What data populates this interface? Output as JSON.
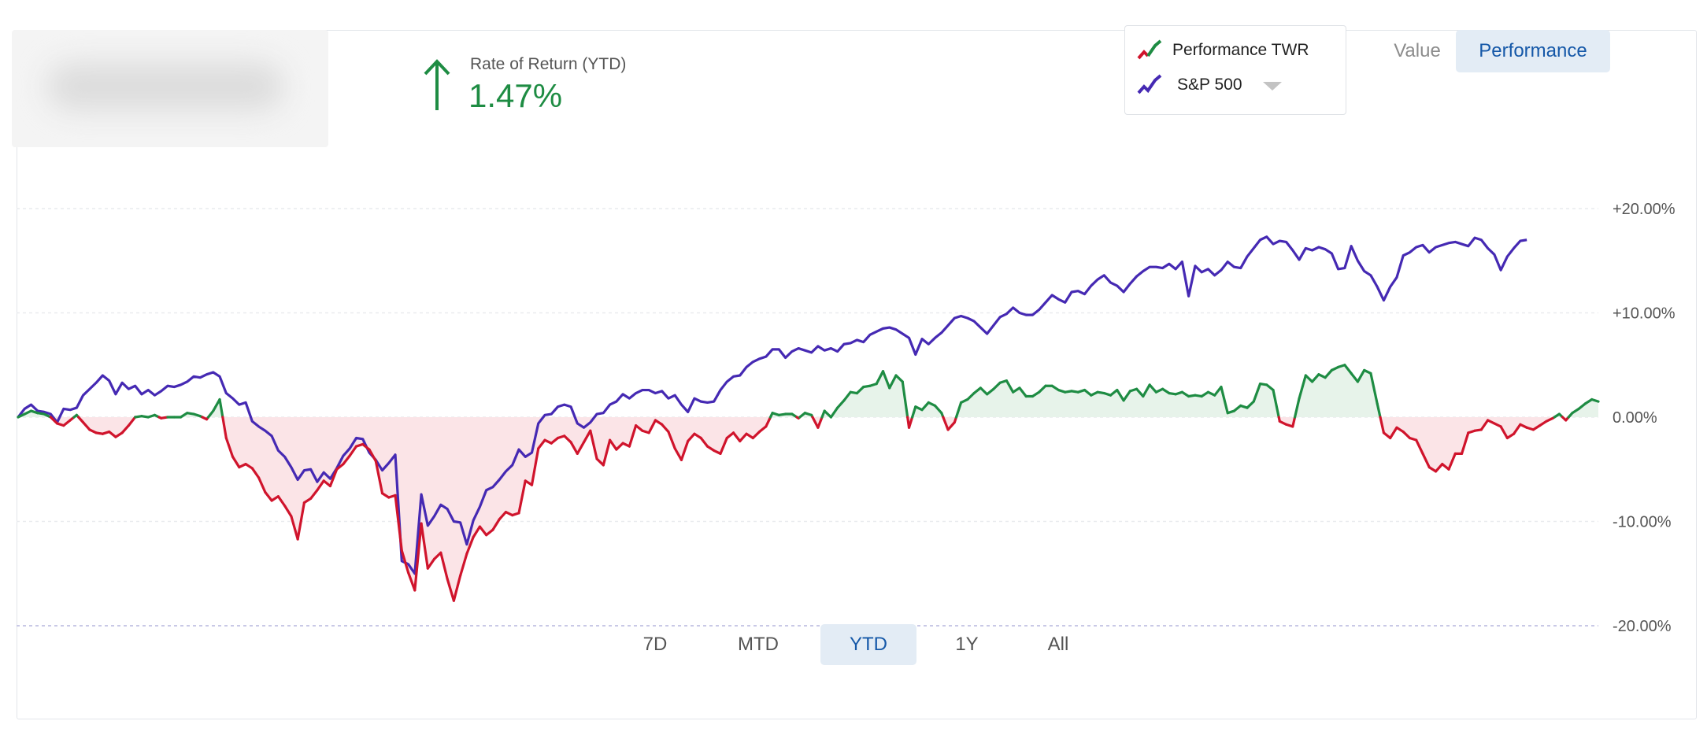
{
  "summary": {
    "rate_label": "Rate of Return (YTD)",
    "rate_value": "1.47%",
    "up_color": "#1e8c43",
    "arrow_icon": "arrow-up-icon"
  },
  "legend": {
    "primary_label": "Performance TWR",
    "benchmark_label": "S&P 500",
    "benchmark_dropdown_icon": "caret-down-icon"
  },
  "view_toggle": {
    "value_label": "Value",
    "performance_label": "Performance",
    "active": "Performance"
  },
  "ranges": {
    "items": [
      "7D",
      "MTD",
      "YTD",
      "1Y",
      "All"
    ],
    "active": "YTD"
  },
  "colors": {
    "twr_positive": "#1e8c43",
    "twr_negative": "#d0142c",
    "sp500": "#4529b3",
    "fill_positive": "#e7f3ea",
    "fill_negative": "#fbe4e7",
    "accent": "#1558a8"
  },
  "chart_data": {
    "type": "line",
    "title": "",
    "xlabel": "",
    "ylabel": "",
    "ylim": [
      -20,
      20
    ],
    "yticks": [
      "+20.00%",
      "+10.00%",
      "0.00%",
      "-10.00%",
      "-20.00%"
    ],
    "ytick_values": [
      20,
      10,
      0,
      -10,
      -20
    ],
    "grid": true,
    "axis_side": "right",
    "series": [
      {
        "name": "Performance TWR",
        "values": [
          0,
          0.3,
          0.6,
          0.4,
          0.3,
          0.0,
          -0.6,
          -0.8,
          -0.3,
          0.2,
          -0.5,
          -1.2,
          -1.5,
          -1.6,
          -1.4,
          -1.9,
          -1.5,
          -0.8,
          0.0,
          0.1,
          0.0,
          0.2,
          -0.1,
          0.0,
          0.0,
          0.0,
          0.4,
          0.3,
          0.1,
          -0.2,
          0.6,
          1.7,
          -2.0,
          -3.8,
          -4.8,
          -4.5,
          -4.9,
          -5.8,
          -7.2,
          -8.0,
          -7.6,
          -8.5,
          -9.5,
          -11.7,
          -8.2,
          -7.8,
          -7.0,
          -6.1,
          -6.6,
          -5.0,
          -4.5,
          -3.7,
          -2.8,
          -2.6,
          -3.1,
          -4.2,
          -7.3,
          -7.7,
          -7.5,
          -12.8,
          -14.9,
          -16.6,
          -10.2,
          -14.5,
          -13.6,
          -13.0,
          -15.5,
          -17.6,
          -15.2,
          -13.1,
          -11.5,
          -10.5,
          -11.3,
          -10.8,
          -9.8,
          -9.1,
          -9.4,
          -9.2,
          -6.1,
          -6.5,
          -3.0,
          -2.2,
          -2.5,
          -2.0,
          -1.8,
          -2.4,
          -3.5,
          -2.4,
          -1.3,
          -4.0,
          -4.6,
          -2.2,
          -3.1,
          -2.5,
          -2.8,
          -0.8,
          -1.3,
          -1.5,
          -0.3,
          -0.7,
          -1.4,
          -3.0,
          -4.1,
          -2.3,
          -1.6,
          -2.0,
          -2.8,
          -3.2,
          -3.5,
          -2.0,
          -1.5,
          -2.3,
          -1.6,
          -2.0,
          -1.4,
          -0.9,
          0.4,
          0.2,
          0.3,
          0.3,
          -0.1,
          0.4,
          0.2,
          -1.0,
          0.6,
          0.0,
          0.9,
          1.6,
          2.4,
          2.3,
          2.9,
          3.0,
          3.2,
          4.4,
          2.8,
          4.0,
          3.4,
          -1.0,
          1.0,
          0.7,
          1.4,
          1.1,
          0.4,
          -1.2,
          -0.5,
          1.4,
          1.7,
          2.3,
          2.8,
          2.2,
          2.7,
          3.3,
          3.5,
          2.4,
          2.8,
          2.0,
          2.0,
          2.4,
          3.0,
          3.0,
          2.6,
          2.4,
          2.5,
          2.4,
          2.6,
          2.1,
          2.4,
          2.3,
          2.1,
          2.6,
          1.6,
          2.5,
          2.7,
          2.0,
          3.1,
          2.4,
          2.7,
          2.3,
          2.2,
          2.4,
          2.0,
          2.1,
          2.0,
          2.4,
          2.1,
          2.9,
          0.4,
          0.6,
          1.1,
          0.9,
          1.5,
          3.2,
          3.1,
          2.6,
          -0.4,
          -0.7,
          -0.9,
          1.8,
          4.0,
          3.4,
          4.1,
          3.8,
          4.5,
          4.8,
          5.0,
          4.2,
          3.4,
          4.5,
          4.2,
          1.3,
          -1.5,
          -2.0,
          -1.0,
          -1.4,
          -2.0,
          -2.2,
          -3.5,
          -4.8,
          -5.2,
          -4.5,
          -5.0,
          -3.5,
          -3.5,
          -1.5,
          -1.3,
          -1.2,
          -0.3,
          -0.6,
          -0.9,
          -2.0,
          -1.6,
          -0.7,
          -1.0,
          -1.2,
          -0.8,
          -0.4,
          -0.1,
          0.3,
          -0.3,
          0.4,
          0.8,
          1.3,
          1.7,
          1.5
        ]
      },
      {
        "name": "S&P 500",
        "values": [
          0,
          0.8,
          1.2,
          0.6,
          0.5,
          0.3,
          -0.5,
          0.8,
          0.7,
          0.9,
          2.1,
          2.7,
          3.3,
          4.0,
          3.5,
          2.2,
          3.3,
          2.7,
          3.0,
          2.2,
          2.6,
          2.1,
          2.5,
          3.0,
          2.9,
          3.1,
          3.4,
          3.9,
          3.8,
          4.1,
          4.3,
          3.9,
          2.3,
          1.8,
          1.2,
          1.4,
          -0.4,
          -0.9,
          -1.3,
          -1.8,
          -3.2,
          -3.8,
          -4.8,
          -6.0,
          -5.1,
          -5.0,
          -6.2,
          -5.3,
          -5.9,
          -4.9,
          -3.7,
          -3.0,
          -2.0,
          -2.1,
          -3.4,
          -4.1,
          -5.1,
          -4.4,
          -3.6,
          -13.8,
          -14.1,
          -15.0,
          -7.4,
          -10.4,
          -9.5,
          -8.4,
          -8.8,
          -10.0,
          -10.1,
          -12.2,
          -9.9,
          -8.6,
          -7.0,
          -6.7,
          -6.0,
          -5.2,
          -4.6,
          -3.1,
          -3.8,
          -3.4,
          -0.6,
          0.2,
          0.3,
          1.0,
          1.2,
          1.0,
          -0.6,
          -1.0,
          -0.5,
          0.3,
          0.4,
          1.2,
          1.5,
          2.2,
          1.8,
          2.3,
          2.6,
          2.6,
          2.3,
          2.5,
          1.8,
          2.1,
          1.2,
          0.5,
          1.8,
          1.5,
          1.4,
          1.5,
          2.6,
          3.4,
          3.9,
          4.0,
          4.8,
          5.3,
          5.6,
          5.8,
          6.5,
          6.5,
          5.7,
          6.3,
          6.6,
          6.4,
          6.2,
          6.8,
          6.4,
          6.6,
          6.3,
          7.0,
          7.1,
          7.4,
          7.2,
          7.9,
          8.2,
          8.5,
          8.6,
          8.4,
          8.0,
          7.6,
          6.0,
          7.5,
          7.0,
          7.6,
          8.1,
          8.8,
          9.5,
          9.7,
          9.5,
          9.2,
          8.6,
          8.0,
          8.8,
          9.6,
          9.9,
          10.5,
          10.0,
          9.8,
          9.8,
          10.3,
          11.0,
          11.7,
          11.3,
          11.0,
          12.0,
          12.1,
          11.8,
          12.6,
          13.2,
          13.6,
          12.9,
          12.6,
          12.0,
          12.8,
          13.5,
          14.0,
          14.4,
          14.4,
          14.3,
          14.7,
          14.2,
          14.9,
          11.6,
          14.5,
          13.9,
          14.2,
          13.6,
          14.1,
          14.9,
          14.4,
          14.3,
          15.4,
          16.2,
          17.0,
          17.3,
          16.6,
          16.9,
          16.8,
          16.0,
          15.1,
          16.2,
          16.0,
          16.3,
          16.1,
          15.7,
          14.2,
          14.3,
          16.4,
          15.0,
          14.0,
          13.6,
          12.5,
          11.2,
          12.5,
          13.4,
          15.5,
          15.8,
          16.3,
          16.5,
          15.8,
          16.3,
          16.5,
          16.7,
          16.8,
          16.6,
          16.4,
          17.2,
          17.0,
          16.2,
          15.6,
          14.1,
          15.4,
          16.2,
          16.9,
          17.0
        ]
      }
    ]
  }
}
